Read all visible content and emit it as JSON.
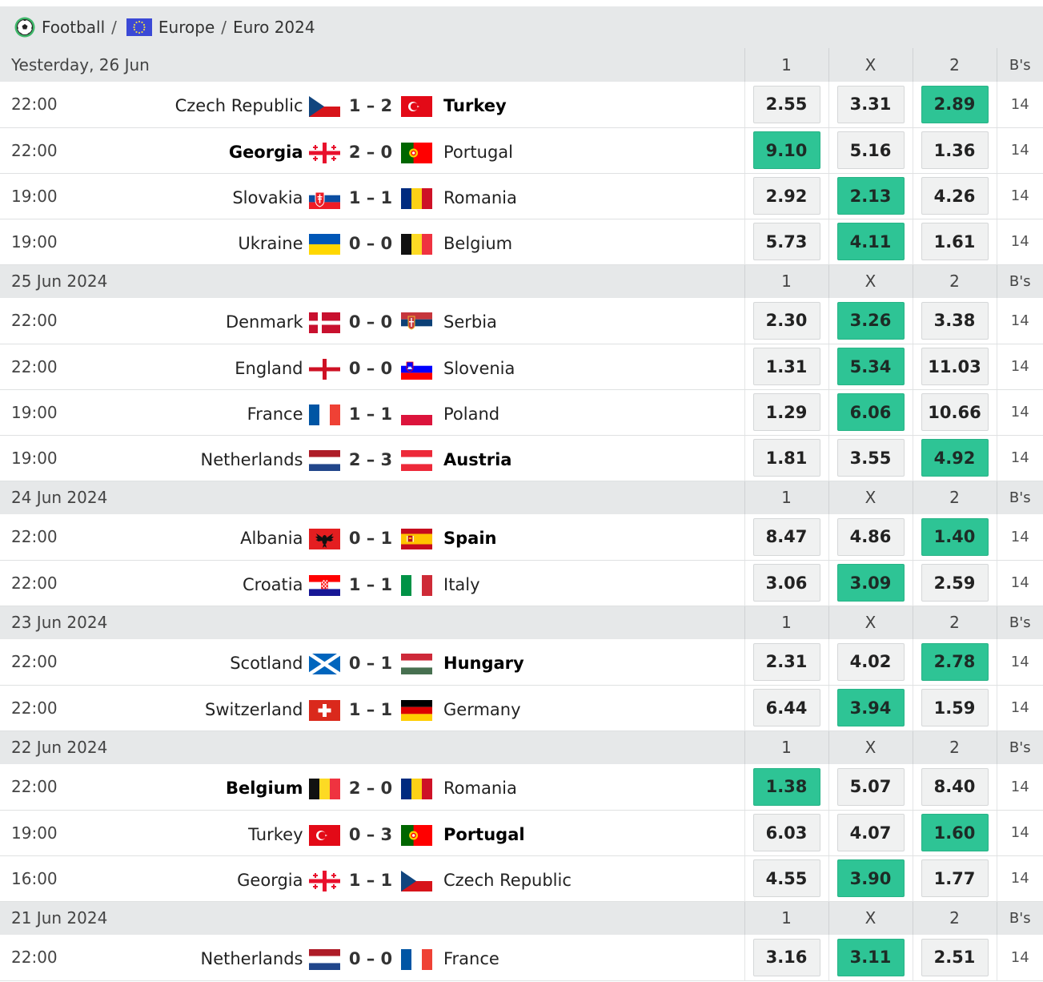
{
  "breadcrumb": {
    "sport": "Football",
    "region": "Europe",
    "tournament": "Euro 2024",
    "separator": "/"
  },
  "columns": {
    "home": "1",
    "draw": "X",
    "away": "2",
    "bookmakers": "B's"
  },
  "colors": {
    "best_odd": "#2ec495",
    "header_bg": "#e6e8e9"
  },
  "groups": [
    {
      "date": "Yesterday, 26 Jun",
      "matches": [
        {
          "time": "22:00",
          "home": "Czech Republic",
          "home_flag": "czech",
          "score": "1 – 2",
          "away": "Turkey",
          "away_flag": "turkey",
          "winner": "away",
          "odds": [
            "2.55",
            "3.31",
            "2.89"
          ],
          "best": 2,
          "bs": "14"
        },
        {
          "time": "22:00",
          "home": "Georgia",
          "home_flag": "georgia",
          "score": "2 – 0",
          "away": "Portugal",
          "away_flag": "portugal",
          "winner": "home",
          "odds": [
            "9.10",
            "5.16",
            "1.36"
          ],
          "best": 0,
          "bs": "14"
        },
        {
          "time": "19:00",
          "home": "Slovakia",
          "home_flag": "slovakia",
          "score": "1 – 1",
          "away": "Romania",
          "away_flag": "romania",
          "winner": "draw",
          "odds": [
            "2.92",
            "2.13",
            "4.26"
          ],
          "best": 1,
          "bs": "14"
        },
        {
          "time": "19:00",
          "home": "Ukraine",
          "home_flag": "ukraine",
          "score": "0 – 0",
          "away": "Belgium",
          "away_flag": "belgium",
          "winner": "draw",
          "odds": [
            "5.73",
            "4.11",
            "1.61"
          ],
          "best": 1,
          "bs": "14"
        }
      ]
    },
    {
      "date": "25 Jun 2024",
      "matches": [
        {
          "time": "22:00",
          "home": "Denmark",
          "home_flag": "denmark",
          "score": "0 – 0",
          "away": "Serbia",
          "away_flag": "serbia",
          "winner": "draw",
          "odds": [
            "2.30",
            "3.26",
            "3.38"
          ],
          "best": 1,
          "bs": "14"
        },
        {
          "time": "22:00",
          "home": "England",
          "home_flag": "england",
          "score": "0 – 0",
          "away": "Slovenia",
          "away_flag": "slovenia",
          "winner": "draw",
          "odds": [
            "1.31",
            "5.34",
            "11.03"
          ],
          "best": 1,
          "bs": "14"
        },
        {
          "time": "19:00",
          "home": "France",
          "home_flag": "france",
          "score": "1 – 1",
          "away": "Poland",
          "away_flag": "poland",
          "winner": "draw",
          "odds": [
            "1.29",
            "6.06",
            "10.66"
          ],
          "best": 1,
          "bs": "14"
        },
        {
          "time": "19:00",
          "home": "Netherlands",
          "home_flag": "netherlands",
          "score": "2 – 3",
          "away": "Austria",
          "away_flag": "austria",
          "winner": "away",
          "odds": [
            "1.81",
            "3.55",
            "4.92"
          ],
          "best": 2,
          "bs": "14"
        }
      ]
    },
    {
      "date": "24 Jun 2024",
      "matches": [
        {
          "time": "22:00",
          "home": "Albania",
          "home_flag": "albania",
          "score": "0 – 1",
          "away": "Spain",
          "away_flag": "spain",
          "winner": "away",
          "odds": [
            "8.47",
            "4.86",
            "1.40"
          ],
          "best": 2,
          "bs": "14"
        },
        {
          "time": "22:00",
          "home": "Croatia",
          "home_flag": "croatia",
          "score": "1 – 1",
          "away": "Italy",
          "away_flag": "italy",
          "winner": "draw",
          "odds": [
            "3.06",
            "3.09",
            "2.59"
          ],
          "best": 1,
          "bs": "14"
        }
      ]
    },
    {
      "date": "23 Jun 2024",
      "matches": [
        {
          "time": "22:00",
          "home": "Scotland",
          "home_flag": "scotland",
          "score": "0 – 1",
          "away": "Hungary",
          "away_flag": "hungary",
          "winner": "away",
          "odds": [
            "2.31",
            "4.02",
            "2.78"
          ],
          "best": 2,
          "bs": "14"
        },
        {
          "time": "22:00",
          "home": "Switzerland",
          "home_flag": "switzerland",
          "score": "1 – 1",
          "away": "Germany",
          "away_flag": "germany",
          "winner": "draw",
          "odds": [
            "6.44",
            "3.94",
            "1.59"
          ],
          "best": 1,
          "bs": "14"
        }
      ]
    },
    {
      "date": "22 Jun 2024",
      "matches": [
        {
          "time": "22:00",
          "home": "Belgium",
          "home_flag": "belgium",
          "score": "2 – 0",
          "away": "Romania",
          "away_flag": "romania",
          "winner": "home",
          "odds": [
            "1.38",
            "5.07",
            "8.40"
          ],
          "best": 0,
          "bs": "14"
        },
        {
          "time": "19:00",
          "home": "Turkey",
          "home_flag": "turkey",
          "score": "0 – 3",
          "away": "Portugal",
          "away_flag": "portugal",
          "winner": "away",
          "odds": [
            "6.03",
            "4.07",
            "1.60"
          ],
          "best": 2,
          "bs": "14"
        },
        {
          "time": "16:00",
          "home": "Georgia",
          "home_flag": "georgia",
          "score": "1 – 1",
          "away": "Czech Republic",
          "away_flag": "czech",
          "winner": "draw",
          "odds": [
            "4.55",
            "3.90",
            "1.77"
          ],
          "best": 1,
          "bs": "14"
        }
      ]
    },
    {
      "date": "21 Jun 2024",
      "matches": [
        {
          "time": "22:00",
          "home": "Netherlands",
          "home_flag": "netherlands",
          "score": "0 – 0",
          "away": "France",
          "away_flag": "france",
          "winner": "draw",
          "odds": [
            "3.16",
            "3.11",
            "2.51"
          ],
          "best": 1,
          "bs": "14"
        }
      ]
    }
  ]
}
